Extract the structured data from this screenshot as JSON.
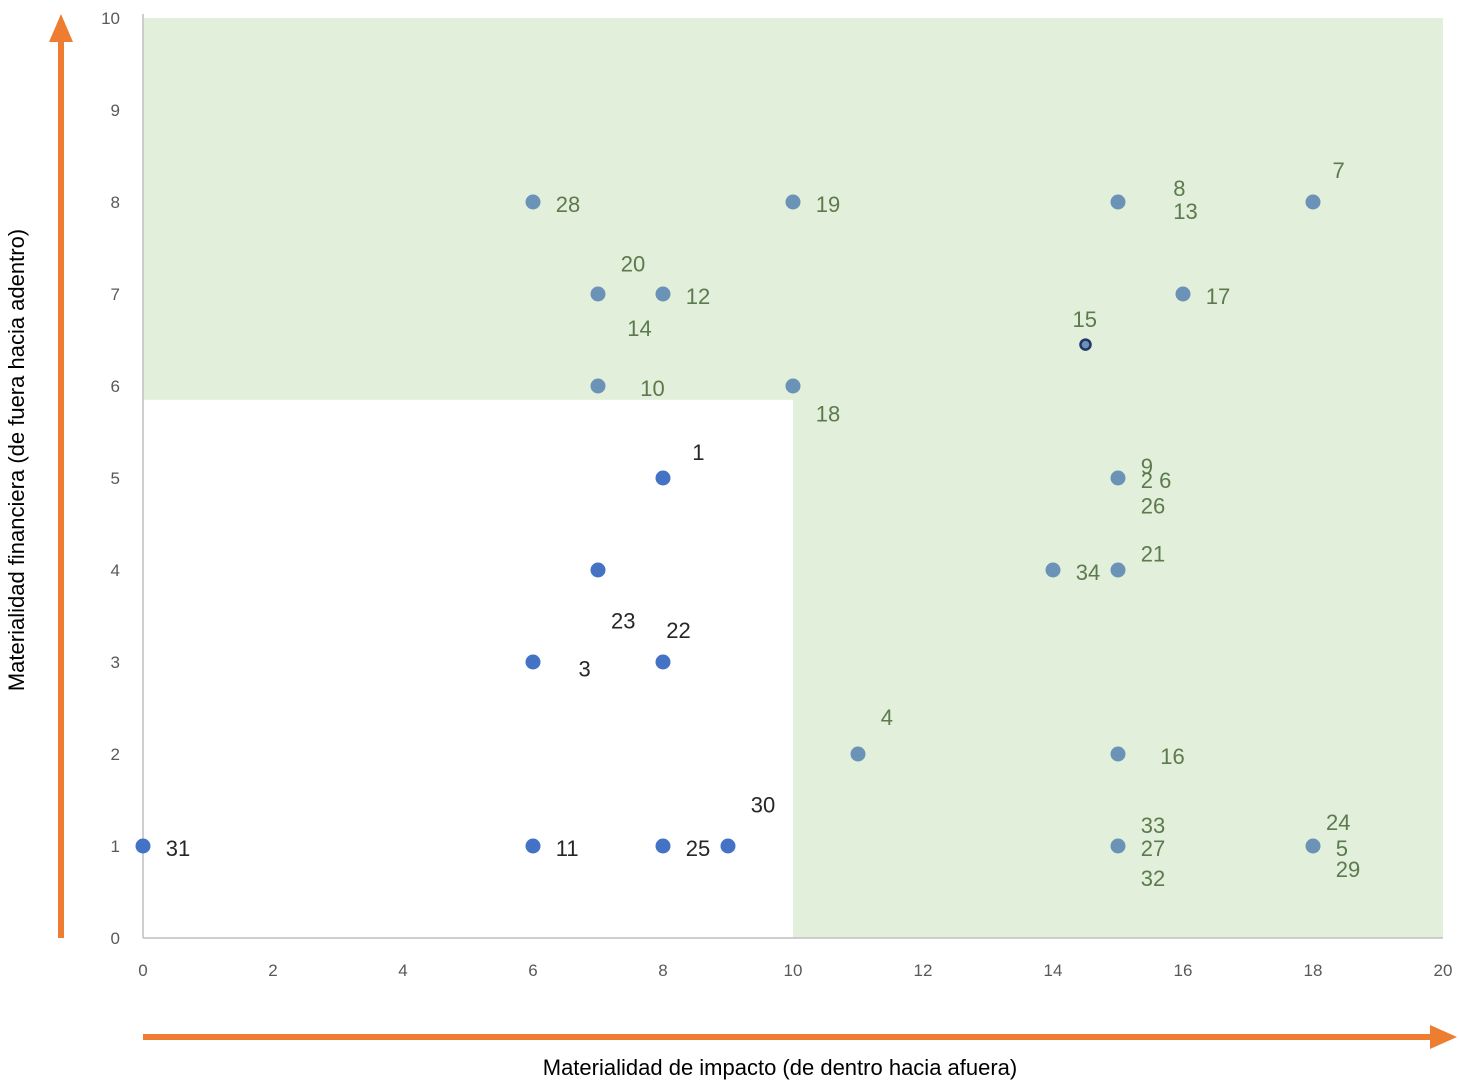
{
  "chart_data": {
    "type": "scatter",
    "title": "",
    "xlabel": "Materialidad de impacto (de dentro hacia afuera)",
    "ylabel": "Materialidad financiera (de fuera hacia adentro)",
    "xlim": [
      0,
      20
    ],
    "ylim": [
      0,
      10
    ],
    "xticks": [
      "0",
      "2",
      "4",
      "6",
      "8",
      "10",
      "12",
      "14",
      "16",
      "18",
      "20"
    ],
    "yticks": [
      "0",
      "1",
      "2",
      "3",
      "4",
      "5",
      "6",
      "7",
      "8",
      "9",
      "10"
    ],
    "grid": false,
    "legend": "none",
    "highlight_regions": [
      {
        "x": [
          0,
          10
        ],
        "y": [
          5.85,
          10
        ],
        "color": "#e2efda"
      },
      {
        "x": [
          10,
          20
        ],
        "y": [
          0,
          10
        ],
        "color": "#e2efda"
      }
    ],
    "colors": {
      "in_zone_point": "#6b93b8",
      "out_zone_point": "#4472c4",
      "in_zone_label": "#5c7a4e",
      "out_zone_label": "#262626",
      "arrow": "#ed7d31",
      "special_point": "#1f3864"
    },
    "points": [
      {
        "x": 6,
        "y": 8,
        "zone": "in"
      },
      {
        "x": 10,
        "y": 8,
        "zone": "in"
      },
      {
        "x": 15,
        "y": 8,
        "zone": "in"
      },
      {
        "x": 18,
        "y": 8,
        "zone": "in"
      },
      {
        "x": 7,
        "y": 7,
        "zone": "in"
      },
      {
        "x": 8,
        "y": 7,
        "zone": "in"
      },
      {
        "x": 16,
        "y": 7,
        "zone": "in"
      },
      {
        "x": 14.5,
        "y": 6.45,
        "zone": "special"
      },
      {
        "x": 7,
        "y": 6,
        "zone": "in"
      },
      {
        "x": 10,
        "y": 6,
        "zone": "in"
      },
      {
        "x": 8,
        "y": 5,
        "zone": "out"
      },
      {
        "x": 15,
        "y": 5,
        "zone": "in"
      },
      {
        "x": 7,
        "y": 4,
        "zone": "out"
      },
      {
        "x": 14,
        "y": 4,
        "zone": "in"
      },
      {
        "x": 15,
        "y": 4,
        "zone": "in"
      },
      {
        "x": 6,
        "y": 3,
        "zone": "out"
      },
      {
        "x": 8,
        "y": 3,
        "zone": "out"
      },
      {
        "x": 11,
        "y": 2,
        "zone": "in"
      },
      {
        "x": 15,
        "y": 2,
        "zone": "in"
      },
      {
        "x": 0,
        "y": 1,
        "zone": "out"
      },
      {
        "x": 6,
        "y": 1,
        "zone": "out"
      },
      {
        "x": 8,
        "y": 1,
        "zone": "out"
      },
      {
        "x": 9,
        "y": 1,
        "zone": "out"
      },
      {
        "x": 15,
        "y": 1,
        "zone": "in"
      },
      {
        "x": 18,
        "y": 1,
        "zone": "in"
      }
    ],
    "labels": [
      {
        "text": "28",
        "x": 6.35,
        "y": 7.98,
        "zone": "in"
      },
      {
        "text": "19",
        "x": 10.35,
        "y": 7.98,
        "zone": "in"
      },
      {
        "text": "8",
        "x": 15.85,
        "y": 8.15,
        "zone": "in"
      },
      {
        "text": "13",
        "x": 15.85,
        "y": 7.9,
        "zone": "in"
      },
      {
        "text": "7",
        "x": 18.3,
        "y": 8.35,
        "zone": "in"
      },
      {
        "text": "20",
        "x": 7.35,
        "y": 7.33,
        "zone": "in"
      },
      {
        "text": "12",
        "x": 8.35,
        "y": 6.98,
        "zone": "in"
      },
      {
        "text": "14",
        "x": 7.45,
        "y": 6.63,
        "zone": "in"
      },
      {
        "text": "17",
        "x": 16.35,
        "y": 6.98,
        "zone": "in"
      },
      {
        "text": "15",
        "x": 14.3,
        "y": 6.73,
        "zone": "in"
      },
      {
        "text": "10",
        "x": 7.65,
        "y": 5.98,
        "zone": "in"
      },
      {
        "text": "18",
        "x": 10.35,
        "y": 5.7,
        "zone": "in"
      },
      {
        "text": "1",
        "x": 8.45,
        "y": 5.28,
        "zone": "out"
      },
      {
        "text": "9",
        "x": 15.35,
        "y": 5.13,
        "zone": "in"
      },
      {
        "text": "2 6",
        "x": 15.35,
        "y": 4.98,
        "zone": "in"
      },
      {
        "text": "26",
        "x": 15.35,
        "y": 4.7,
        "zone": "in"
      },
      {
        "text": "21",
        "x": 15.35,
        "y": 4.18,
        "zone": "in"
      },
      {
        "text": "34",
        "x": 14.35,
        "y": 3.98,
        "zone": "in"
      },
      {
        "text": "23",
        "x": 7.2,
        "y": 3.45,
        "zone": "out"
      },
      {
        "text": "22",
        "x": 8.05,
        "y": 3.35,
        "zone": "out"
      },
      {
        "text": "3",
        "x": 6.7,
        "y": 2.93,
        "zone": "out"
      },
      {
        "text": "4",
        "x": 11.35,
        "y": 2.4,
        "zone": "in"
      },
      {
        "text": "16",
        "x": 15.65,
        "y": 1.98,
        "zone": "in"
      },
      {
        "text": "30",
        "x": 9.35,
        "y": 1.45,
        "zone": "out"
      },
      {
        "text": "33",
        "x": 15.35,
        "y": 1.23,
        "zone": "in"
      },
      {
        "text": "27",
        "x": 15.35,
        "y": 0.98,
        "zone": "in"
      },
      {
        "text": "32",
        "x": 15.35,
        "y": 0.65,
        "zone": "in"
      },
      {
        "text": "24",
        "x": 18.2,
        "y": 1.26,
        "zone": "in"
      },
      {
        "text": "5",
        "x": 18.35,
        "y": 0.98,
        "zone": "in"
      },
      {
        "text": "29",
        "x": 18.35,
        "y": 0.75,
        "zone": "in"
      },
      {
        "text": "31",
        "x": 0.35,
        "y": 0.98,
        "zone": "out"
      },
      {
        "text": "11",
        "x": 6.35,
        "y": 0.98,
        "zone": "out"
      },
      {
        "text": "25",
        "x": 8.35,
        "y": 0.98,
        "zone": "out"
      }
    ]
  }
}
